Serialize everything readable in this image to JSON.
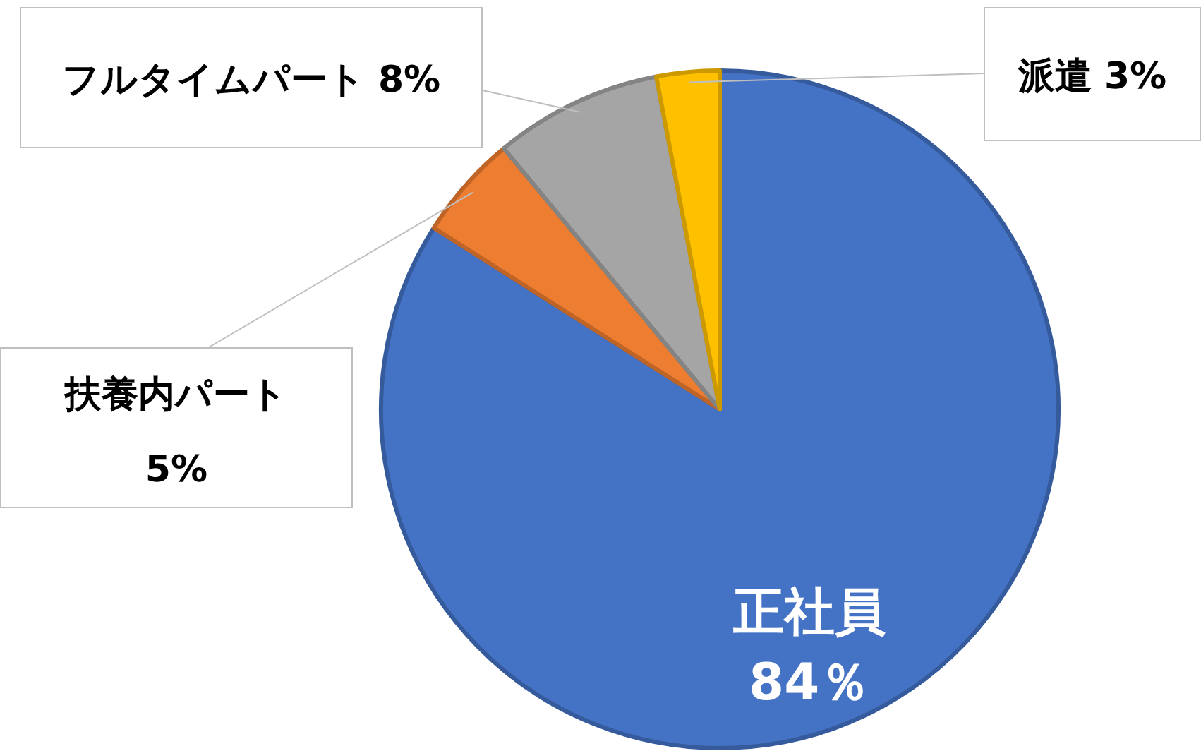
{
  "chart_data": {
    "type": "pie",
    "categories": [
      "正社員",
      "扶養内パート",
      "フルタイムパート",
      "派遣"
    ],
    "values": [
      84,
      5,
      8,
      3
    ],
    "value_labels": [
      "84％",
      "5%",
      "8%",
      "3%"
    ],
    "colors": [
      "#4472c4",
      "#ed7d31",
      "#a5a5a5",
      "#ffc000"
    ]
  }
}
